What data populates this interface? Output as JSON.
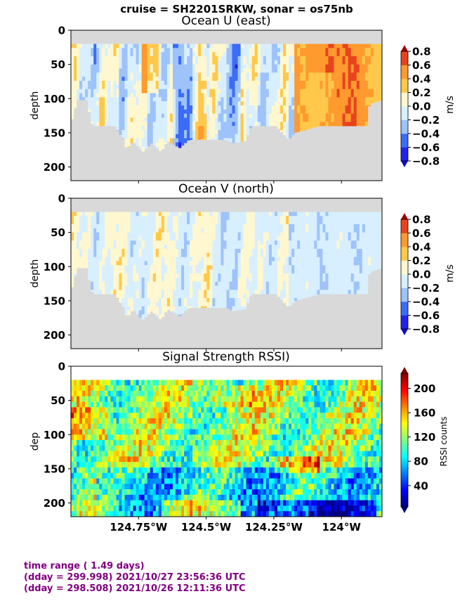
{
  "suptitle": "cruise = SH2201SRKW,  sonar = os75nb",
  "colors": {
    "land": "#d9d9d9",
    "footer": "#800080"
  },
  "chart_data": [
    {
      "type": "heatmap",
      "title": "Ocean U (east)",
      "ylabel": "depth",
      "xlim": [
        125.0,
        123.85
      ],
      "ylim": [
        220,
        0
      ],
      "yticks": [
        "0",
        "50",
        "100",
        "150",
        "200"
      ],
      "colorbar": {
        "label": "m/s",
        "ticks": [
          "0.8",
          "0.6",
          "0.4",
          "0.2",
          "0.0",
          "−0.2",
          "−0.4",
          "−0.6",
          "−0.8"
        ],
        "range": [
          -0.8,
          0.8
        ],
        "levels": [
          -0.8,
          -0.6,
          -0.4,
          -0.2,
          0.0,
          0.2,
          0.4,
          0.6,
          0.8
        ],
        "colormap": "jet-contour"
      }
    },
    {
      "type": "heatmap",
      "title": "Ocean V (north)",
      "ylabel": "depth",
      "xlim": [
        125.0,
        123.85
      ],
      "ylim": [
        220,
        0
      ],
      "yticks": [
        "0",
        "50",
        "100",
        "150",
        "200"
      ],
      "colorbar": {
        "label": "m/s",
        "ticks": [
          "0.8",
          "0.6",
          "0.4",
          "0.2",
          "0.0",
          "−0.2",
          "−0.4",
          "−0.6",
          "−0.8"
        ],
        "range": [
          -0.8,
          0.8
        ],
        "levels": [
          -0.8,
          -0.6,
          -0.4,
          -0.2,
          0.0,
          0.2,
          0.4,
          0.6,
          0.8
        ],
        "colormap": "jet-contour"
      }
    },
    {
      "type": "heatmap",
      "title": "Signal Strength RSSI)",
      "ylabel": "dep",
      "xlim": [
        125.0,
        123.85
      ],
      "ylim": [
        220,
        0
      ],
      "yticks": [
        "0",
        "50",
        "100",
        "150",
        "200"
      ],
      "xticks": [
        {
          "value": 124.75,
          "label": "124.75°W"
        },
        {
          "value": 124.5,
          "label": "124.5°W"
        },
        {
          "value": 124.25,
          "label": "124.25°W"
        },
        {
          "value": 124.0,
          "label": "124°W"
        }
      ],
      "colorbar": {
        "label": "RSSI counts",
        "ticks": [
          "200",
          "160",
          "120",
          "80",
          "40"
        ],
        "range": [
          5,
          225
        ],
        "colormap": "jet"
      }
    }
  ],
  "footer": {
    "line1": "time range ( 1.49 days)",
    "line2": "(dday = 299.998) 2021/10/27 23:56:36 UTC",
    "line3": "(dday = 298.508) 2021/10/26 12:11:36 UTC"
  }
}
